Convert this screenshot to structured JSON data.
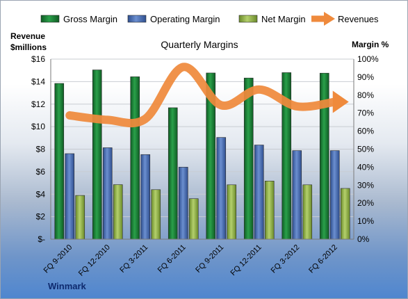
{
  "chart_data": {
    "type": "bar",
    "title": "Quarterly Margins",
    "company": "Winmark",
    "left_axis_label": [
      "Revenue",
      "$millions"
    ],
    "right_axis_label": "Margin %",
    "left_ticks": [
      "$-",
      "$2",
      "$4",
      "$6",
      "$8",
      "$10",
      "$12",
      "$14",
      "$16"
    ],
    "right_ticks": [
      "0%",
      "10%",
      "20%",
      "30%",
      "40%",
      "50%",
      "60%",
      "70%",
      "80%",
      "90%",
      "100%"
    ],
    "ylim_left": [
      0,
      16
    ],
    "ylim_right": [
      0,
      100
    ],
    "categories": [
      "FQ 9-2010",
      "FQ 12-2010",
      "FQ 3-2011",
      "FQ 6-2011",
      "FQ 9-2011",
      "FQ 12-2011",
      "FQ 3-2012",
      "FQ 6-2012"
    ],
    "legend_position": "top",
    "grid": "horizontal",
    "series": [
      {
        "name": "Gross Margin",
        "axis": "right",
        "kind": "bar",
        "color": "#1e8a3c",
        "values": [
          86.5,
          94,
          90.2,
          73,
          92.3,
          89.5,
          92.5,
          92.2
        ]
      },
      {
        "name": "Operating Margin",
        "axis": "right",
        "kind": "bar",
        "color": "#4a6fb5",
        "values": [
          47.5,
          50.8,
          47,
          40,
          56.5,
          52.3,
          49.2,
          49.2
        ]
      },
      {
        "name": "Net Margin",
        "axis": "right",
        "kind": "bar",
        "color": "#9bbb4f",
        "values": [
          24.3,
          30.3,
          27.5,
          22.5,
          30.2,
          32.3,
          30.2,
          28.2
        ]
      },
      {
        "name": "Revenues",
        "axis": "left",
        "kind": "line",
        "color": "#ef8a3c",
        "values": [
          11,
          10.6,
          10.7,
          15.3,
          11.9,
          13.3,
          11.8,
          12.2
        ]
      }
    ]
  }
}
